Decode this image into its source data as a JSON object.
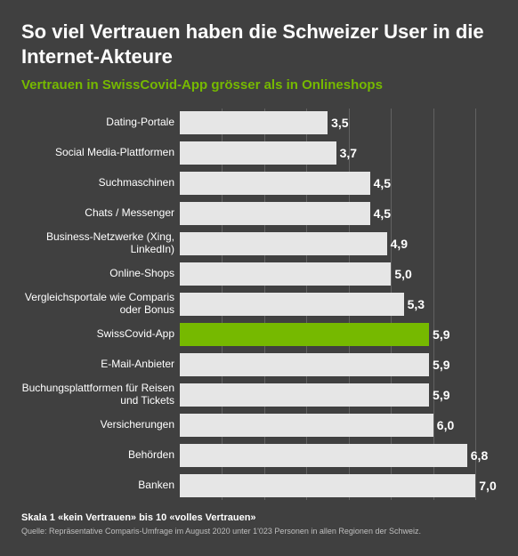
{
  "title": "So viel Vertrauen haben die Schweizer User in die Internet-Akteure",
  "subtitle": "Vertrauen in SwissCovid-App grösser als in Onlineshops",
  "subtitle_color": "#76b900",
  "chart": {
    "type": "bar-horizontal",
    "xlim": [
      0,
      7.5
    ],
    "grid_step": 1,
    "grid_color": "rgba(255,255,255,0.18)",
    "bar_default_color": "#e6e6e6",
    "bar_highlight_color": "#76b900",
    "value_color": "#ffffff",
    "label_color": "#ffffff",
    "label_fontsize": 12,
    "value_fontsize": 14,
    "items": [
      {
        "label": "Dating-Portale",
        "value": 3.5,
        "display": "3,5",
        "highlight": false
      },
      {
        "label": "Social Media-Plattformen",
        "value": 3.7,
        "display": "3,7",
        "highlight": false
      },
      {
        "label": "Suchmaschinen",
        "value": 4.5,
        "display": "4,5",
        "highlight": false
      },
      {
        "label": "Chats / Messenger",
        "value": 4.5,
        "display": "4,5",
        "highlight": false
      },
      {
        "label": "Business-Netzwerke (Xing, LinkedIn)",
        "value": 4.9,
        "display": "4,9",
        "highlight": false
      },
      {
        "label": "Online-Shops",
        "value": 5.0,
        "display": "5,0",
        "highlight": false
      },
      {
        "label": "Vergleichsportale wie Comparis oder Bonus",
        "value": 5.3,
        "display": "5,3",
        "highlight": false
      },
      {
        "label": "SwissCovid-App",
        "value": 5.9,
        "display": "5,9",
        "highlight": true
      },
      {
        "label": "E-Mail-Anbieter",
        "value": 5.9,
        "display": "5,9",
        "highlight": false
      },
      {
        "label": "Buchungsplattformen für Reisen und Tickets",
        "value": 5.9,
        "display": "5,9",
        "highlight": false
      },
      {
        "label": "Versicherungen",
        "value": 6.0,
        "display": "6,0",
        "highlight": false
      },
      {
        "label": "Behörden",
        "value": 6.8,
        "display": "6,8",
        "highlight": false
      },
      {
        "label": "Banken",
        "value": 7.0,
        "display": "7,0",
        "highlight": false
      }
    ]
  },
  "scale_note": "Skala 1 «kein Vertrauen» bis 10 «volles Vertrauen»",
  "source": "Quelle: Repräsentative Comparis-Umfrage im August 2020 unter 1'023 Personen in allen Regionen der Schweiz.",
  "background_color": "#404040"
}
